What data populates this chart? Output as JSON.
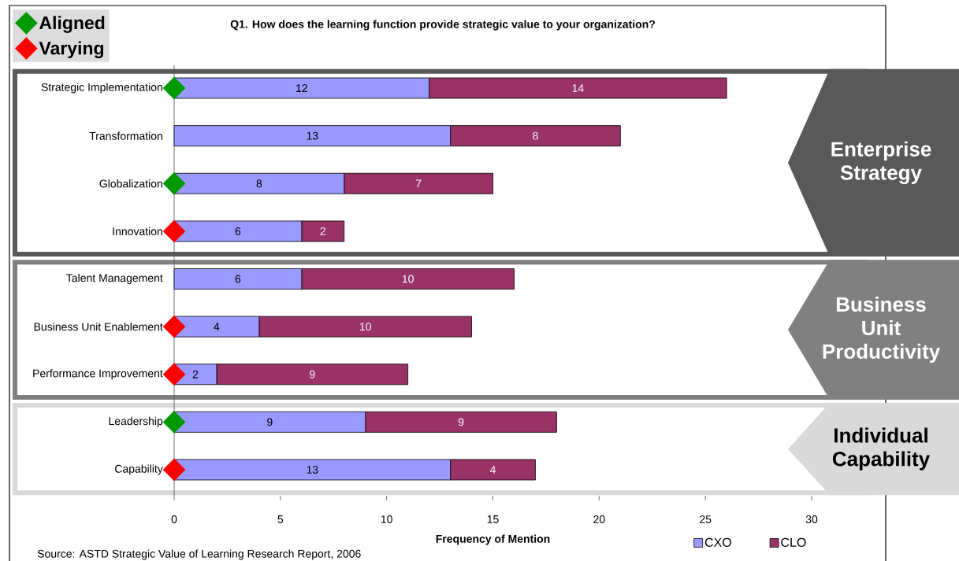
{
  "chart_data": {
    "type": "bar",
    "orientation": "horizontal",
    "stacked": true,
    "title": "Q1. How does the learning function provide strategic value to your organization?",
    "xlabel": "Frequency of Mention",
    "categories": [
      "Strategic Implementation",
      "Transformation",
      "Globalization",
      "Innovation",
      "Talent Management",
      "Business Unit Enablement",
      "Performance Improvement",
      "Leadership",
      "Capability"
    ],
    "series": [
      {
        "name": "CXO",
        "color": "#9999ff",
        "values": [
          12,
          13,
          8,
          6,
          6,
          4,
          2,
          9,
          13
        ],
        "value_labels": [
          "12",
          "13",
          "8",
          "6",
          "6",
          "4",
          "2",
          "9",
          "13"
        ]
      },
      {
        "name": "CLO",
        "color": "#993366",
        "values": [
          14,
          8,
          7,
          2,
          10,
          10,
          9,
          9,
          4
        ],
        "value_labels": [
          "14",
          "8",
          "7",
          "2",
          "10",
          "10",
          "9",
          "9",
          "4"
        ]
      },
      {
        "name": "Aligned",
        "type": "scatter",
        "color": "#009900",
        "marker": "diamond",
        "values": [
          0,
          null,
          0,
          null,
          null,
          null,
          null,
          0,
          null
        ]
      },
      {
        "name": "Varying",
        "type": "scatter",
        "color": "#ff0000",
        "marker": "diamond",
        "values": [
          null,
          null,
          null,
          0,
          null,
          0,
          0,
          null,
          0
        ]
      }
    ],
    "xlim": [
      0,
      30
    ],
    "xticks": [
      0,
      5,
      10,
      15,
      20,
      25,
      30
    ],
    "legend": "top left",
    "annotations": [
      "Enterprise Strategy",
      "Business Unit Productivity",
      "Individual Capability",
      "Source: ASTD Strategic Value of Learning Research Report, 2006"
    ]
  }
}
